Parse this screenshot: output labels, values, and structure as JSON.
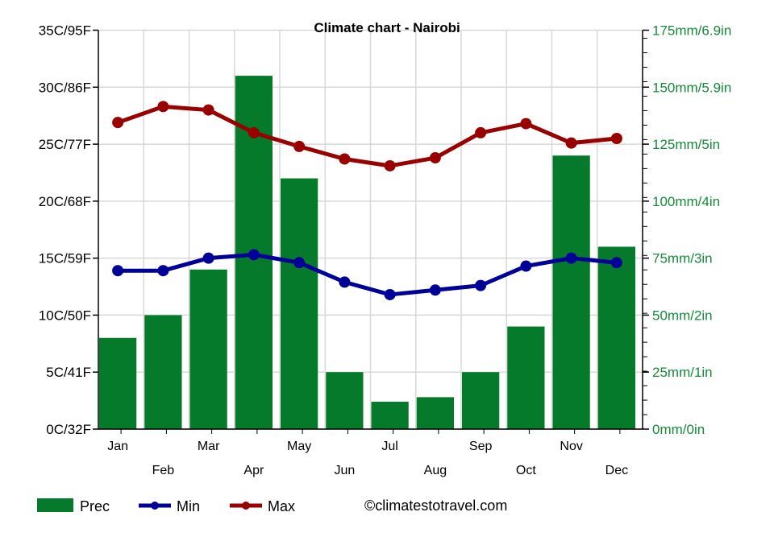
{
  "chart_data": {
    "type": "bar+line",
    "title": "Climate chart - Nairobi",
    "categories": [
      "Jan",
      "Feb",
      "Mar",
      "Apr",
      "May",
      "Jun",
      "Jul",
      "Aug",
      "Sep",
      "Oct",
      "Nov",
      "Dec"
    ],
    "series": [
      {
        "name": "Prec",
        "type": "bar",
        "axis": "right",
        "color": "#057a2b",
        "values": [
          40,
          50,
          70,
          155,
          110,
          25,
          12,
          14,
          25,
          45,
          120,
          80
        ]
      },
      {
        "name": "Min",
        "type": "line",
        "axis": "left",
        "color": "#000099",
        "values": [
          13.9,
          13.9,
          15.0,
          15.3,
          14.6,
          12.9,
          11.8,
          12.2,
          12.6,
          14.3,
          15.0,
          14.6
        ]
      },
      {
        "name": "Max",
        "type": "line",
        "axis": "left",
        "color": "#990000",
        "values": [
          26.9,
          28.3,
          28.0,
          26.0,
          24.8,
          23.7,
          23.1,
          23.8,
          26.0,
          26.8,
          25.1,
          25.5
        ]
      }
    ],
    "left_axis": {
      "range": [
        0,
        35
      ],
      "ticks": [
        0,
        5,
        10,
        15,
        20,
        25,
        30,
        35
      ],
      "tick_labels": [
        "0C/32F",
        "5C/41F",
        "10C/50F",
        "15C/59F",
        "20C/68F",
        "25C/77F",
        "30C/86F",
        "35C/95F"
      ]
    },
    "right_axis": {
      "range": [
        0,
        175
      ],
      "ticks": [
        0,
        25,
        50,
        75,
        100,
        125,
        150,
        175
      ],
      "tick_labels": [
        "0mm/0in",
        "25mm/1in",
        "50mm/2in",
        "75mm/3in",
        "100mm/4in",
        "125mm/5in",
        "150mm/5.9in",
        "175mm/6.9in"
      ],
      "color": "#138a3a"
    },
    "grid": true,
    "legend": "bottom"
  },
  "credit": "©climatestotravel.com"
}
